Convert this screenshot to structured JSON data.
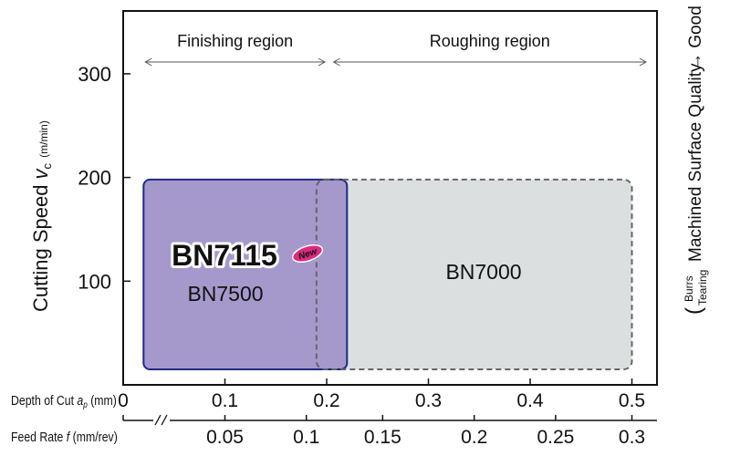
{
  "chart_data": {
    "type": "area",
    "xlabel": "Depth of Cut",
    "xlabel_symbol": "a",
    "xlabel_subscript": "p",
    "xlabel_unit": "(mm)",
    "ylabel": "Cutting Speed",
    "ylabel_symbol": "v",
    "ylabel_subscript": "c",
    "ylabel_unit": "(m/min)",
    "xlim": [
      0,
      0.52
    ],
    "ylim": [
      0,
      360
    ],
    "x_ticks": [
      "0",
      "0.1",
      "0.2",
      "0.3",
      "0.4",
      "0.5"
    ],
    "x_tick_values": [
      0,
      0.1,
      0.2,
      0.3,
      0.4,
      0.5
    ],
    "y_ticks": [
      "100",
      "200",
      "300"
    ],
    "y_tick_values": [
      100,
      200,
      300
    ],
    "secondary_x_axis": {
      "label": "Feed Rate",
      "symbol": "f",
      "unit": "(mm/rev)",
      "ticks": [
        "0.05",
        "0.1",
        "0.15",
        "0.2",
        "0.25",
        "0.3"
      ],
      "tick_positions_depth": [
        0.1,
        0.18,
        0.255,
        0.345,
        0.425,
        0.5
      ]
    },
    "right_label": {
      "line1": "Machined Surface Quality",
      "arrow_good": "→ Good",
      "bracket_top": "Burrs",
      "bracket_bottom": "Tearing"
    },
    "regions": [
      {
        "label": "Finishing region",
        "x": [
          0.02,
          0.2
        ]
      },
      {
        "label": "Roughing region",
        "x": [
          0.205,
          0.52
        ]
      }
    ],
    "series": [
      {
        "name": "BN7500",
        "x": [
          0.02,
          0.22
        ],
        "y": [
          15,
          198
        ],
        "color": "#a599cc",
        "border": "#1d2a86"
      },
      {
        "name": "BN7000",
        "x": [
          0.19,
          0.5
        ],
        "y": [
          15,
          198
        ],
        "color": "#dcdfe0",
        "border": "#666666"
      }
    ],
    "highlight": {
      "text": "BN7115",
      "badge": "New"
    }
  }
}
